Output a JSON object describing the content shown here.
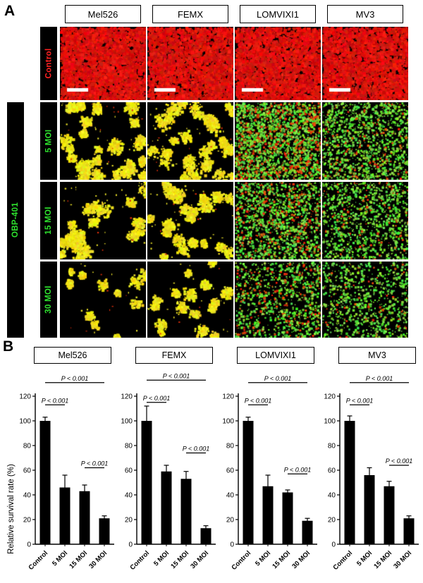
{
  "figure": {
    "panel_a_label": "A",
    "panel_b_label": "B"
  },
  "panelA": {
    "columns": [
      "Mel526",
      "FEMX",
      "LOMVIXI1",
      "MV3"
    ],
    "row_labels": {
      "control": "Control",
      "treatment": "OBP-401",
      "moi": [
        "5 MOI",
        "15 MOI",
        "30 MOI"
      ]
    },
    "colors": {
      "control_label_text": "#ff2222",
      "treatment_label_text": "#2ee32e",
      "label_bar_background": "#000000",
      "control_fluorescence": "#e62314",
      "treated_fluorescence_yellow": "#f2e322",
      "treated_fluorescence_green": "#58df45"
    },
    "micrographs": [
      [
        {
          "scheme": "red",
          "density": 1.0,
          "scalebar": true
        },
        {
          "scheme": "red",
          "density": 0.95,
          "scalebar": true
        },
        {
          "scheme": "red",
          "density": 0.9,
          "scalebar": true
        },
        {
          "scheme": "red",
          "density": 0.95,
          "scalebar": true
        }
      ],
      [
        {
          "scheme": "yellow",
          "density": 0.8,
          "clusters": 26,
          "spread": 9
        },
        {
          "scheme": "yellow",
          "density": 0.85,
          "clusters": 28,
          "spread": 10
        },
        {
          "scheme": "green",
          "density": 1.0,
          "red_mix": 0.3
        },
        {
          "scheme": "green",
          "density": 0.6,
          "red_mix": 0.12
        }
      ],
      [
        {
          "scheme": "yellow",
          "density": 0.65,
          "clusters": 20,
          "spread": 9
        },
        {
          "scheme": "yellow",
          "density": 0.7,
          "clusters": 22,
          "spread": 9
        },
        {
          "scheme": "green",
          "density": 0.65,
          "red_mix": 0.25
        },
        {
          "scheme": "green",
          "density": 0.5,
          "red_mix": 0.1
        }
      ],
      [
        {
          "scheme": "yellow",
          "density": 0.35,
          "clusters": 11,
          "spread": 8
        },
        {
          "scheme": "yellow",
          "density": 0.5,
          "clusters": 16,
          "spread": 8
        },
        {
          "scheme": "green",
          "density": 0.45,
          "red_mix": 0.2
        },
        {
          "scheme": "green",
          "density": 0.38,
          "red_mix": 0.08
        }
      ]
    ]
  },
  "chart_data": [
    {
      "type": "bar",
      "title": "Mel526",
      "categories": [
        "Control",
        "5 MOI",
        "15 MOI",
        "30 MOI"
      ],
      "values": [
        100,
        46,
        43,
        21
      ],
      "errors": [
        3,
        10,
        5,
        2
      ],
      "ylabel": "Relative survival rate (%)",
      "ylim": [
        0,
        120
      ],
      "yticks": [
        0,
        20,
        40,
        60,
        80,
        100,
        120
      ],
      "bar_color": "#000000",
      "significance": [
        {
          "from": "Control",
          "to": "30 MOI",
          "label": "P < 0.001",
          "height": 131
        },
        {
          "from": "Control",
          "to": "5 MOI",
          "label": "P < 0.001",
          "height": 113
        },
        {
          "from": "15 MOI",
          "to": "30 MOI",
          "label": "P < 0.001",
          "height": 62
        }
      ]
    },
    {
      "type": "bar",
      "title": "FEMX",
      "categories": [
        "Control",
        "5 MOI",
        "15 MOI",
        "30 MOI"
      ],
      "values": [
        100,
        59,
        53,
        13
      ],
      "errors": [
        12,
        5,
        6,
        2
      ],
      "ylabel": "",
      "ylim": [
        0,
        120
      ],
      "yticks": [
        0,
        20,
        40,
        60,
        80,
        100,
        120
      ],
      "bar_color": "#000000",
      "significance": [
        {
          "from": "Control",
          "to": "30 MOI",
          "label": "P < 0.001",
          "height": 133
        },
        {
          "from": "Control",
          "to": "5 MOI",
          "label": "P < 0.001",
          "height": 115
        },
        {
          "from": "15 MOI",
          "to": "30 MOI",
          "label": "P < 0.001",
          "height": 74
        }
      ]
    },
    {
      "type": "bar",
      "title": "LOMVIXI1",
      "categories": [
        "Control",
        "5 MOI",
        "15 MOI",
        "30 MOI"
      ],
      "values": [
        100,
        47,
        42,
        19
      ],
      "errors": [
        3,
        9,
        2,
        2
      ],
      "ylabel": "",
      "ylim": [
        0,
        120
      ],
      "yticks": [
        0,
        20,
        40,
        60,
        80,
        100,
        120
      ],
      "bar_color": "#000000",
      "significance": [
        {
          "from": "Control",
          "to": "30 MOI",
          "label": "P < 0.001",
          "height": 131
        },
        {
          "from": "Control",
          "to": "5 MOI",
          "label": "P < 0.001",
          "height": 113
        },
        {
          "from": "15 MOI",
          "to": "30 MOI",
          "label": "P < 0.001",
          "height": 57
        }
      ]
    },
    {
      "type": "bar",
      "title": "MV3",
      "categories": [
        "Control",
        "5 MOI",
        "15 MOI",
        "30 MOI"
      ],
      "values": [
        100,
        56,
        47,
        21
      ],
      "errors": [
        4,
        6,
        4,
        2
      ],
      "ylabel": "",
      "ylim": [
        0,
        120
      ],
      "yticks": [
        0,
        20,
        40,
        60,
        80,
        100,
        120
      ],
      "bar_color": "#000000",
      "significance": [
        {
          "from": "Control",
          "to": "30 MOI",
          "label": "P < 0.001",
          "height": 131
        },
        {
          "from": "Control",
          "to": "5 MOI",
          "label": "P < 0.001",
          "height": 113
        },
        {
          "from": "15 MOI",
          "to": "30 MOI",
          "label": "P < 0.001",
          "height": 64
        }
      ]
    }
  ]
}
